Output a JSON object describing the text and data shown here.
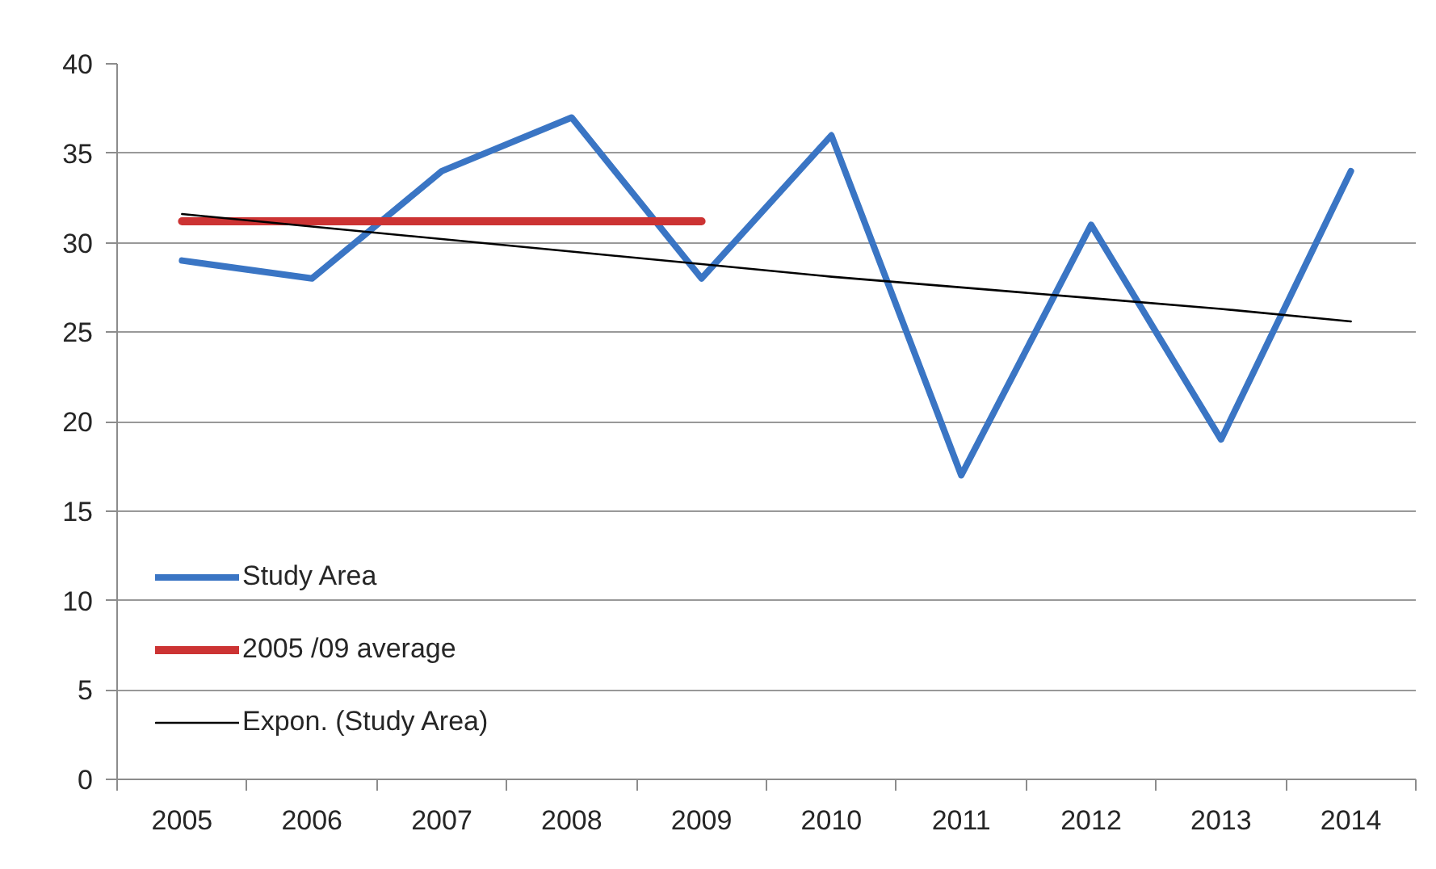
{
  "chart_data": {
    "type": "line",
    "categories": [
      "2005",
      "2006",
      "2007",
      "2008",
      "2009",
      "2010",
      "2011",
      "2012",
      "2013",
      "2014"
    ],
    "series": [
      {
        "name": "Study Area",
        "color": "#3a75c4",
        "values": [
          29,
          28,
          34,
          37,
          28,
          36,
          17,
          31,
          19,
          34
        ]
      },
      {
        "name": "2005 /09 average",
        "color": "#cc3333",
        "values": [
          31.2,
          31.2,
          31.2,
          31.2,
          31.2,
          null,
          null,
          null,
          null,
          null
        ]
      },
      {
        "name": "Expon. (Study Area)",
        "color": "#000000",
        "values": [
          31.6,
          30.9,
          30.2,
          29.5,
          28.8,
          28.1,
          27.5,
          26.9,
          26.3,
          25.6
        ]
      }
    ],
    "ylim": [
      0,
      40
    ],
    "yticks": [
      0,
      5,
      10,
      15,
      20,
      25,
      30,
      35,
      40
    ],
    "grid": "y",
    "legend": "bottom left"
  }
}
